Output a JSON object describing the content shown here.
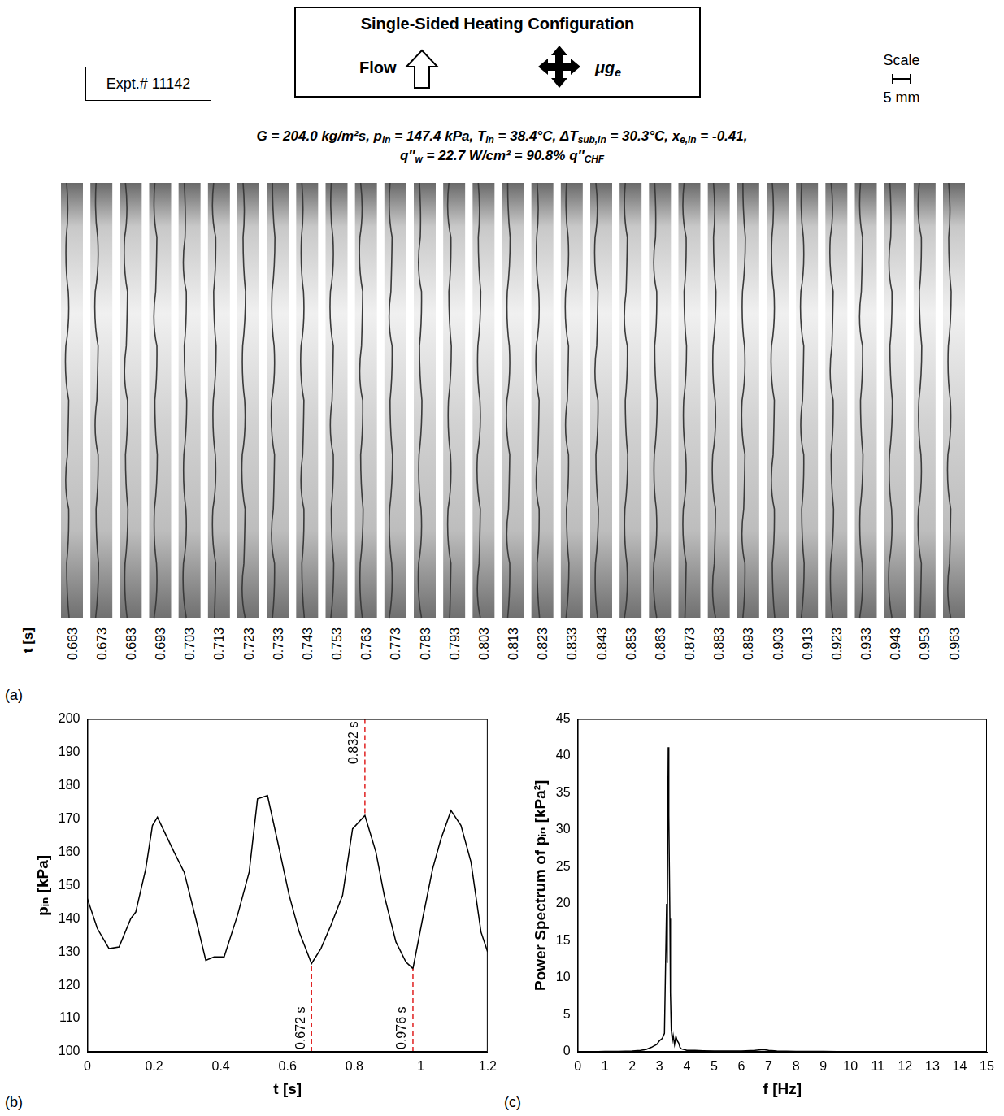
{
  "experiment": "Expt.# 11142",
  "configuration": {
    "title": "Single-Sided Heating Configuration",
    "flow_label": "Flow",
    "gravity_label": [
      {
        "t": "μg"
      },
      {
        "sub": "e"
      }
    ]
  },
  "scale": {
    "label": "Scale",
    "length": "5 mm"
  },
  "conditions": [
    [
      {
        "t": "G = 204.0 kg/m²s, p"
      },
      {
        "sub": "in"
      },
      {
        "t": " = 147.4 kPa, T"
      },
      {
        "sub": "in"
      },
      {
        "t": " = 38.4°C, ΔT"
      },
      {
        "sub": "sub,in"
      },
      {
        "t": " = 30.3°C, x"
      },
      {
        "sub": "e,in"
      },
      {
        "t": " = -0.41,"
      }
    ],
    [
      {
        "t": "q″"
      },
      {
        "sub": "w"
      },
      {
        "t": " = 22.7 W/cm² = 90.8% q″"
      },
      {
        "sub": "CHF"
      }
    ]
  ],
  "panel_a": {
    "letter": "(a)",
    "time_axis_label": "t [s]",
    "times": [
      0.663,
      0.673,
      0.683,
      0.693,
      0.703,
      0.713,
      0.723,
      0.733,
      0.743,
      0.753,
      0.763,
      0.773,
      0.783,
      0.793,
      0.803,
      0.813,
      0.823,
      0.833,
      0.843,
      0.853,
      0.863,
      0.873,
      0.883,
      0.893,
      0.903,
      0.913,
      0.923,
      0.933,
      0.943,
      0.953,
      0.963
    ]
  },
  "chart_data": [
    {
      "type": "line",
      "panel": "(b)",
      "x_label": "t [s]",
      "y_label": "pᵢₙ [kPa]",
      "x": [
        0,
        0.03,
        0.065,
        0.095,
        0.13,
        0.145,
        0.175,
        0.195,
        0.21,
        0.26,
        0.29,
        0.325,
        0.355,
        0.38,
        0.41,
        0.45,
        0.485,
        0.51,
        0.54,
        0.575,
        0.605,
        0.635,
        0.672,
        0.7,
        0.73,
        0.765,
        0.795,
        0.832,
        0.865,
        0.89,
        0.925,
        0.955,
        0.976,
        1.005,
        1.035,
        1.06,
        1.09,
        1.12,
        1.15,
        1.18,
        1.2
      ],
      "values": [
        146,
        137,
        131,
        131.5,
        140,
        142,
        155,
        168,
        170.5,
        160,
        154,
        140,
        127.5,
        128.5,
        128.5,
        141,
        154,
        176,
        177,
        161,
        147,
        136,
        126.5,
        131,
        138,
        147,
        167,
        171,
        160,
        147,
        133,
        127,
        125,
        140,
        155,
        164,
        172.5,
        168,
        157,
        136,
        130
      ],
      "color": "#000000",
      "xlim": [
        0,
        1.2
      ],
      "xticks": [
        0,
        0.2,
        0.4,
        0.6,
        0.8,
        1,
        1.2
      ],
      "ylim": [
        100,
        200
      ],
      "yticks": [
        100,
        110,
        120,
        130,
        140,
        150,
        160,
        170,
        180,
        190,
        200
      ],
      "grid": false,
      "annotations": [
        {
          "x": 0.832,
          "y": [
            200,
            171
          ],
          "label": "0.832 s",
          "color": "#e02020",
          "line_style": "dashed"
        },
        {
          "x": 0.672,
          "y": [
            100,
            126.5
          ],
          "label": "0.672 s",
          "color": "#e02020",
          "line_style": "dashed"
        },
        {
          "x": 0.976,
          "y": [
            100,
            125
          ],
          "label": "0.976 s",
          "color": "#e02020",
          "line_style": "dashed"
        }
      ]
    },
    {
      "type": "line",
      "panel": "(c)",
      "x_label": "f [Hz]",
      "y_label": "Power Spectrum of pᵢₙ [kPa²]",
      "x": [
        0,
        0.5,
        1,
        1.5,
        2,
        2.3,
        2.5,
        2.7,
        2.9,
        3.0,
        3.1,
        3.18,
        3.22,
        3.26,
        3.28,
        3.3,
        3.32,
        3.34,
        3.36,
        3.38,
        3.4,
        3.43,
        3.47,
        3.5,
        3.55,
        3.6,
        3.65,
        3.7,
        3.75,
        3.8,
        3.9,
        4.0,
        4.3,
        4.6,
        5,
        5.5,
        6,
        6.5,
        6.8,
        7,
        7.3,
        8,
        9,
        10,
        11,
        12,
        13,
        14,
        15
      ],
      "values": [
        0,
        0,
        0.05,
        0.05,
        0.1,
        0.2,
        0.3,
        0.6,
        1.0,
        1.5,
        1.8,
        2.5,
        11.5,
        20,
        12,
        30,
        41.2,
        32,
        25,
        18,
        8,
        3,
        1.5,
        2.2,
        1,
        2.1,
        1.5,
        1.2,
        0.6,
        0.4,
        0.3,
        0.2,
        0.2,
        0.15,
        0.1,
        0.1,
        0.1,
        0.2,
        0.3,
        0.2,
        0.1,
        0.05,
        0.05,
        0,
        0,
        0,
        0,
        0,
        0
      ],
      "color": "#000000",
      "xlim": [
        0,
        15
      ],
      "xticks": [
        0,
        1,
        2,
        3,
        4,
        5,
        6,
        7,
        8,
        9,
        10,
        11,
        12,
        13,
        14,
        15
      ],
      "ylim": [
        0,
        45
      ],
      "yticks": [
        0,
        5,
        10,
        15,
        20,
        25,
        30,
        35,
        40,
        45
      ],
      "grid": false
    }
  ]
}
